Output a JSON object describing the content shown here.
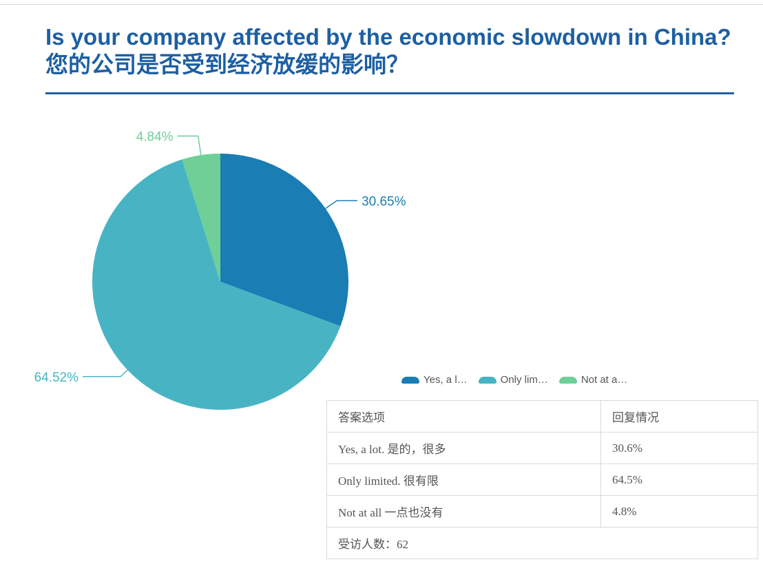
{
  "title": "Is your company affected by the economic slowdown in China? 您的公司是否受到经济放缓的影响？",
  "legend": [
    "Yes, a l…",
    "Only lim…",
    "Not at a…"
  ],
  "colors": {
    "title": "#1d5fa3",
    "yes": "#1a7db3",
    "limited": "#48b4c3",
    "not": "#6fcf97"
  },
  "chart_data": {
    "type": "pie",
    "categories": [
      "Yes, a lot. 是的，很多",
      "Only limited. 很有限",
      "Not at all 一点也没有"
    ],
    "values": [
      30.65,
      64.52,
      4.84
    ],
    "value_labels": [
      "30.65%",
      "64.52%",
      "4.84%"
    ],
    "legend": [
      "Yes, a l…",
      "Only lim…",
      "Not at a…"
    ],
    "legend_position": "bottom-right"
  },
  "table": {
    "headers": [
      "答案选项",
      "回复情况"
    ],
    "rows": [
      [
        "Yes, a lot. 是的，很多",
        "30.6%"
      ],
      [
        "Only limited. 很有限",
        "64.5%"
      ],
      [
        "Not at all 一点也没有",
        "4.8%"
      ]
    ],
    "footer": "受访人数：62"
  }
}
